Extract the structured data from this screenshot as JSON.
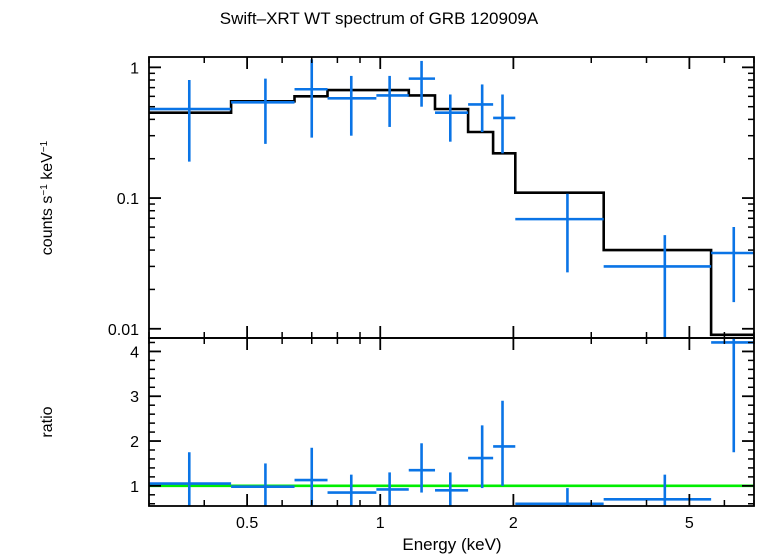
{
  "chart_data": {
    "title": "Swift–XRT WT spectrum of GRB 120909A",
    "xlabel": "Energy (keV)",
    "xscale": "log",
    "xlim": [
      0.3,
      7.0
    ],
    "x_ticks": [
      {
        "v": 0.5,
        "label": "0.5"
      },
      {
        "v": 1,
        "label": "1"
      },
      {
        "v": 2,
        "label": "2"
      },
      {
        "v": 5,
        "label": "5"
      }
    ],
    "panels": [
      {
        "type": "scatter",
        "ylabel_main": "counts s",
        "ylabel_sup1": "−1",
        "ylabel_mid": " keV",
        "ylabel_sup2": "−1",
        "yscale": "log",
        "ylim": [
          0.0085,
          1.2
        ],
        "y_ticks": [
          {
            "v": 1,
            "label": "1"
          },
          {
            "v": 0.1,
            "label": "0.1"
          },
          {
            "v": 0.01,
            "label": "0.01"
          }
        ],
        "data_color": "#0a74e6",
        "model_color": "#000000",
        "data_points": [
          {
            "x": 0.37,
            "xlo": 0.3,
            "xhi": 0.46,
            "y": 0.48,
            "ylo": 0.19,
            "yhi": 0.8
          },
          {
            "x": 0.55,
            "xlo": 0.46,
            "xhi": 0.64,
            "y": 0.54,
            "ylo": 0.26,
            "yhi": 0.82
          },
          {
            "x": 0.7,
            "xlo": 0.64,
            "xhi": 0.76,
            "y": 0.68,
            "ylo": 0.29,
            "yhi": 1.15
          },
          {
            "x": 0.86,
            "xlo": 0.76,
            "xhi": 0.98,
            "y": 0.58,
            "ylo": 0.3,
            "yhi": 0.86
          },
          {
            "x": 1.05,
            "xlo": 0.98,
            "xhi": 1.16,
            "y": 0.61,
            "ylo": 0.35,
            "yhi": 0.86
          },
          {
            "x": 1.24,
            "xlo": 1.16,
            "xhi": 1.33,
            "y": 0.82,
            "ylo": 0.5,
            "yhi": 1.12
          },
          {
            "x": 1.44,
            "xlo": 1.33,
            "xhi": 1.58,
            "y": 0.45,
            "ylo": 0.27,
            "yhi": 0.62
          },
          {
            "x": 1.7,
            "xlo": 1.58,
            "xhi": 1.8,
            "y": 0.52,
            "ylo": 0.32,
            "yhi": 0.74
          },
          {
            "x": 1.89,
            "xlo": 1.8,
            "xhi": 2.02,
            "y": 0.41,
            "ylo": 0.22,
            "yhi": 0.62
          },
          {
            "x": 2.65,
            "xlo": 2.02,
            "xhi": 3.2,
            "y": 0.069,
            "ylo": 0.027,
            "yhi": 0.108
          },
          {
            "x": 4.4,
            "xlo": 3.2,
            "xhi": 5.6,
            "y": 0.03,
            "ylo": 0.0085,
            "yhi": 0.052
          },
          {
            "x": 6.3,
            "xlo": 5.6,
            "xhi": 7.0,
            "y": 0.038,
            "ylo": 0.016,
            "yhi": 0.06
          }
        ],
        "model_steps": [
          {
            "xlo": 0.3,
            "xhi": 0.46,
            "y": 0.45
          },
          {
            "xlo": 0.46,
            "xhi": 0.64,
            "y": 0.55
          },
          {
            "xlo": 0.64,
            "xhi": 0.76,
            "y": 0.6
          },
          {
            "xlo": 0.76,
            "xhi": 0.98,
            "y": 0.67
          },
          {
            "xlo": 0.98,
            "xhi": 1.16,
            "y": 0.67
          },
          {
            "xlo": 1.16,
            "xhi": 1.33,
            "y": 0.61
          },
          {
            "xlo": 1.33,
            "xhi": 1.58,
            "y": 0.48
          },
          {
            "xlo": 1.58,
            "xhi": 1.8,
            "y": 0.32
          },
          {
            "xlo": 1.8,
            "xhi": 2.02,
            "y": 0.22
          },
          {
            "xlo": 2.02,
            "xhi": 3.2,
            "y": 0.11
          },
          {
            "xlo": 3.2,
            "xhi": 5.6,
            "y": 0.04
          },
          {
            "xlo": 5.6,
            "xhi": 7.0,
            "y": 0.009
          }
        ]
      },
      {
        "type": "scatter",
        "ylabel": "ratio",
        "yscale": "linear",
        "ylim": [
          0.55,
          4.3
        ],
        "y_ticks": [
          {
            "v": 1,
            "label": "1"
          },
          {
            "v": 2,
            "label": "2"
          },
          {
            "v": 3,
            "label": "3"
          },
          {
            "v": 4,
            "label": "4"
          }
        ],
        "data_color": "#0a74e6",
        "reference_line": {
          "y": 1.0,
          "color": "#00ee00"
        },
        "data_points": [
          {
            "x": 0.37,
            "xlo": 0.3,
            "xhi": 0.46,
            "y": 1.05,
            "ylo": 0.55,
            "yhi": 1.75
          },
          {
            "x": 0.55,
            "xlo": 0.46,
            "xhi": 0.64,
            "y": 0.98,
            "ylo": 0.55,
            "yhi": 1.5
          },
          {
            "x": 0.7,
            "xlo": 0.64,
            "xhi": 0.76,
            "y": 1.13,
            "ylo": 0.55,
            "yhi": 1.85
          },
          {
            "x": 0.86,
            "xlo": 0.76,
            "xhi": 0.98,
            "y": 0.85,
            "ylo": 0.55,
            "yhi": 1.25
          },
          {
            "x": 1.05,
            "xlo": 0.98,
            "xhi": 1.16,
            "y": 0.92,
            "ylo": 0.55,
            "yhi": 1.3
          },
          {
            "x": 1.24,
            "xlo": 1.16,
            "xhi": 1.33,
            "y": 1.35,
            "ylo": 0.85,
            "yhi": 1.95
          },
          {
            "x": 1.44,
            "xlo": 1.33,
            "xhi": 1.58,
            "y": 0.9,
            "ylo": 0.55,
            "yhi": 1.3
          },
          {
            "x": 1.7,
            "xlo": 1.58,
            "xhi": 1.8,
            "y": 1.62,
            "ylo": 0.95,
            "yhi": 2.35
          },
          {
            "x": 1.89,
            "xlo": 1.8,
            "xhi": 2.02,
            "y": 1.88,
            "ylo": 1.0,
            "yhi": 2.9
          },
          {
            "x": 2.65,
            "xlo": 2.02,
            "xhi": 3.2,
            "y": 0.6,
            "ylo": 0.55,
            "yhi": 0.95
          },
          {
            "x": 4.4,
            "xlo": 3.2,
            "xhi": 5.6,
            "y": 0.7,
            "ylo": 0.55,
            "yhi": 1.25
          },
          {
            "x": 6.3,
            "xlo": 5.6,
            "xhi": 7.0,
            "y": 4.2,
            "ylo": 1.75,
            "yhi": 4.3
          }
        ]
      }
    ]
  }
}
